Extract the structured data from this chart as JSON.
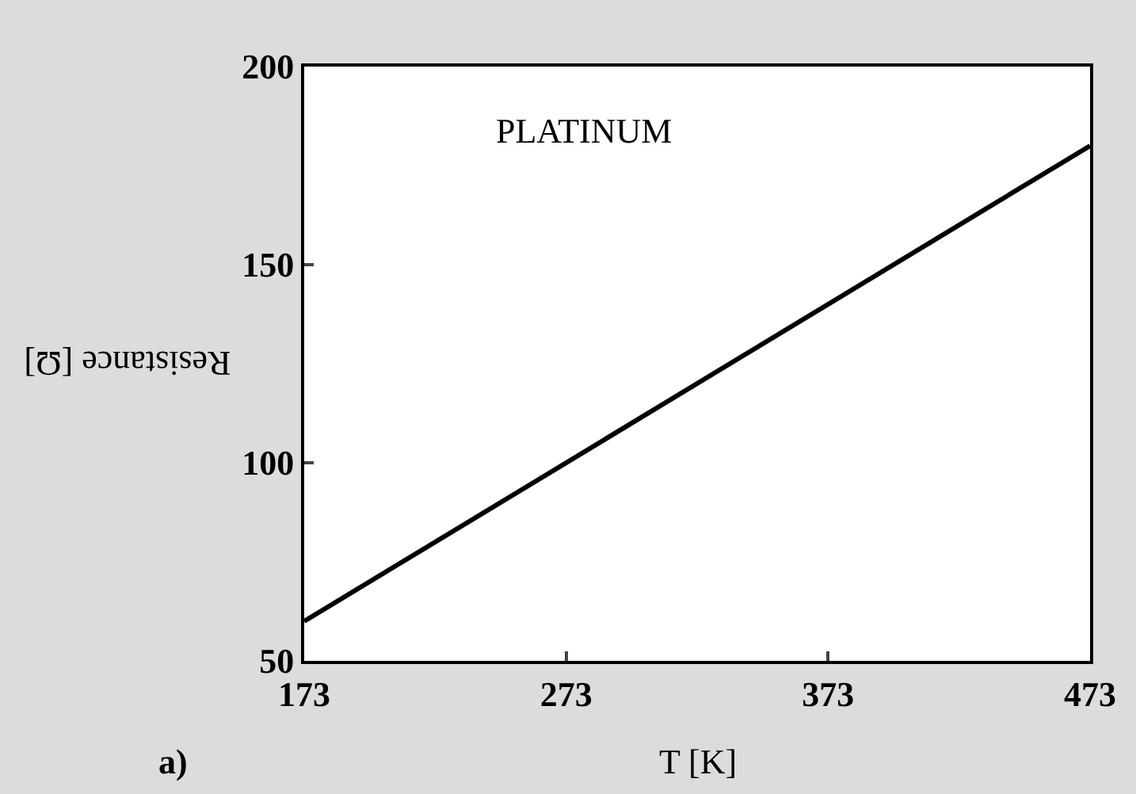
{
  "chart_data": {
    "type": "line",
    "xlabel": "T [K]",
    "ylabel": "Resistance [Ω]",
    "annotations": [
      "PLATINUM",
      "a)"
    ],
    "x": [
      173,
      473
    ],
    "series": [
      {
        "color": "#000000",
        "values": [
          60,
          180
        ]
      }
    ],
    "xlim": [
      173,
      473
    ],
    "xticks": [
      173,
      273,
      373,
      473
    ],
    "ylim": [
      50,
      200
    ],
    "yticks": [
      50,
      100,
      150,
      200
    ],
    "legend": false,
    "marker": "none",
    "line_style": "solid"
  }
}
